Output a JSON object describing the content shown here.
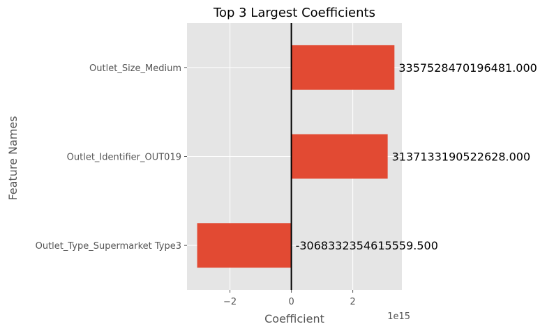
{
  "chart_data": {
    "type": "bar",
    "orientation": "horizontal",
    "title": "Top 3 Largest Coefficients",
    "xlabel": "Coefficient",
    "ylabel": "Feature Names",
    "x_scale_label": "1e15",
    "categories": [
      "Outlet_Size_Medium",
      "Outlet_Identifier_OUT019",
      "Outlet_Type_Supermarket Type3"
    ],
    "values": [
      3357528470196481.0,
      3137133190522628.0,
      -3068332354615559.5
    ],
    "value_labels": [
      "3357528470196481.000",
      "3137133190522628.000",
      "-3068332354615559.500"
    ],
    "xlim": [
      -3400000000000000.0,
      3600000000000000.0
    ],
    "xticks": [
      -2000000000000000.0,
      0,
      2000000000000000.0
    ],
    "xtick_labels": [
      "−2",
      "0",
      "2"
    ],
    "grid": true,
    "zero_line": true,
    "colors": {
      "bar": "#E24A33",
      "background": "#E5E5E5",
      "grid": "#FFFFFF",
      "zero_line": "#000000"
    }
  }
}
